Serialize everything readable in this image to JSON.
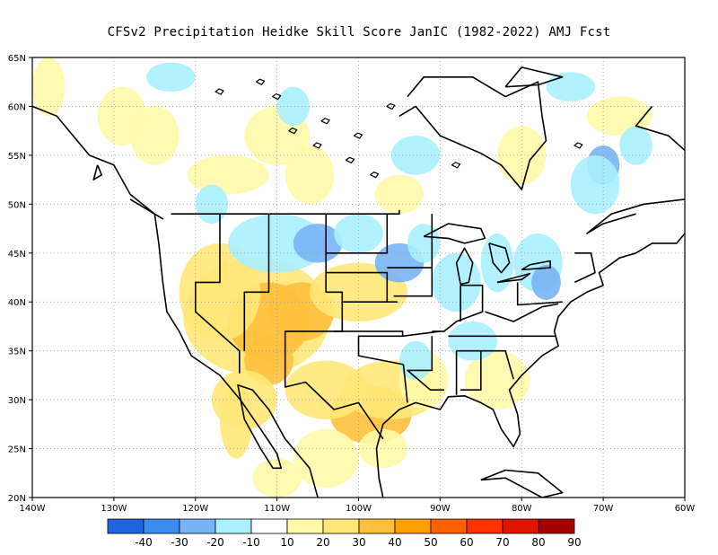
{
  "title": "CFSv2  Precipitation Heidke Skill Score JanIC (1982-2022) AMJ Fcst",
  "map": {
    "lat_labels": [
      "65N",
      "60N",
      "55N",
      "50N",
      "45N",
      "40N",
      "35N",
      "30N",
      "25N",
      "20N"
    ],
    "lon_labels": [
      "140W",
      "130W",
      "120W",
      "110W",
      "100W",
      "90W",
      "80W",
      "70W",
      "60W"
    ],
    "lat_range": [
      20,
      65
    ],
    "lon_range": [
      -140,
      -60
    ],
    "grid": "dotted"
  },
  "colorbar": {
    "labels": [
      "-40",
      "-30",
      "-20",
      "-10",
      "10",
      "20",
      "30",
      "40",
      "50",
      "60",
      "70",
      "80",
      "90"
    ],
    "colors": [
      "#1e64dc",
      "#3c8cf0",
      "#78b4f5",
      "#aaf0ff",
      "#ffffff",
      "#fffaaa",
      "#ffe878",
      "#ffc03c",
      "#ffa000",
      "#ff6000",
      "#ff3200",
      "#e11400",
      "#a50000"
    ]
  }
}
